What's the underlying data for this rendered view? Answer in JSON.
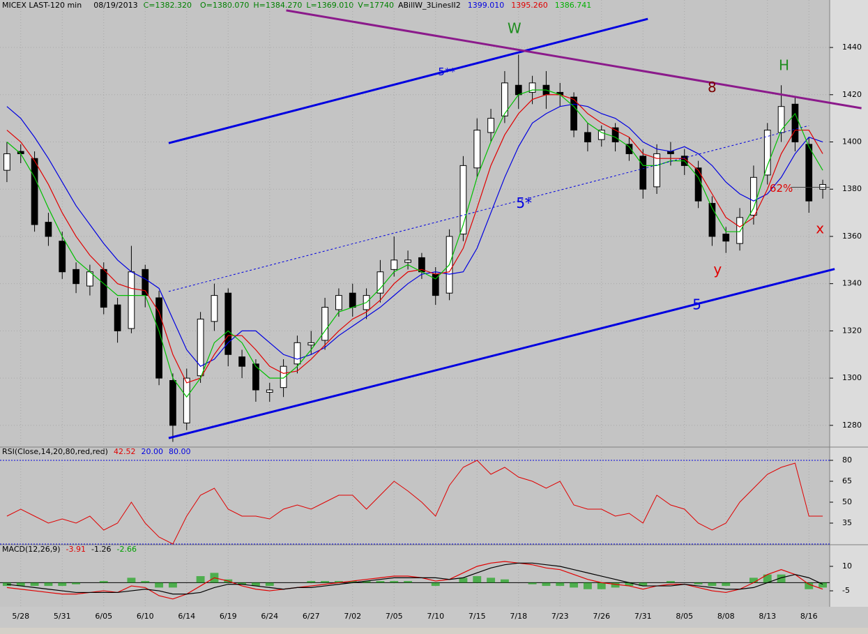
{
  "header": {
    "symbol": "MICEX LAST-120 min",
    "date": "08/19/2013",
    "close": "C=1382.320",
    "open": "O=1380.070",
    "high": "H=1384.270",
    "low": "L=1369.010",
    "volume": "V=17740",
    "study": "ABillW_3LinesII2",
    "study_values": [
      {
        "text": "1399.010",
        "color": "#0000e0"
      },
      {
        "text": "1395.260",
        "color": "#e00000"
      },
      {
        "text": "1386.741",
        "color": "#00b000"
      }
    ]
  },
  "chart_data": [
    {
      "type": "candlestick",
      "categories": [
        null,
        "5/28",
        null,
        null,
        "5/31",
        null,
        null,
        "6/05",
        null,
        null,
        "6/10",
        null,
        null,
        "6/14",
        null,
        null,
        "6/19",
        null,
        null,
        "6/24",
        null,
        null,
        "6/27",
        null,
        null,
        "7/02",
        null,
        null,
        "7/05",
        null,
        null,
        "7/10",
        null,
        null,
        "7/15",
        null,
        null,
        "7/18",
        null,
        null,
        "7/23",
        null,
        null,
        "7/26",
        null,
        null,
        "7/31",
        null,
        null,
        "8/05",
        null,
        null,
        "8/08",
        null,
        null,
        "8/13",
        null,
        null,
        "8/16",
        null
      ],
      "open": [
        1388,
        1396,
        1393,
        1366,
        1358,
        1346,
        1339,
        1346,
        1331,
        1321,
        1346,
        1334,
        1299,
        1281,
        1301,
        1324,
        1336,
        1309,
        1306,
        1294,
        1296,
        1306,
        1314,
        1316,
        1329,
        1336,
        1329,
        1336,
        1346,
        1349,
        1351,
        1344,
        1336,
        1361,
        1389,
        1404,
        1411,
        1424,
        1421,
        1424,
        1421,
        1419,
        1404,
        1401,
        1406,
        1399,
        1394,
        1381,
        1396,
        1394,
        1389,
        1374,
        1361,
        1357,
        1369,
        1386,
        1404,
        1416,
        1399,
        1380
      ],
      "high": [
        1400,
        1399,
        1396,
        1370,
        1362,
        1349,
        1348,
        1349,
        1334,
        1356,
        1348,
        1337,
        1302,
        1304,
        1328,
        1340,
        1338,
        1312,
        1308,
        1298,
        1308,
        1318,
        1320,
        1334,
        1338,
        1340,
        1338,
        1350,
        1360,
        1354,
        1353,
        1347,
        1363,
        1394,
        1410,
        1414,
        1430,
        1437,
        1428,
        1430,
        1425,
        1421,
        1408,
        1407,
        1408,
        1402,
        1397,
        1399,
        1400,
        1397,
        1392,
        1377,
        1364,
        1372,
        1390,
        1408,
        1424,
        1419,
        1402,
        1384
      ],
      "low": [
        1383,
        1391,
        1362,
        1356,
        1342,
        1336,
        1335,
        1327,
        1315,
        1319,
        1330,
        1297,
        1273,
        1278,
        1298,
        1320,
        1305,
        1300,
        1290,
        1290,
        1292,
        1302,
        1310,
        1312,
        1326,
        1326,
        1325,
        1332,
        1343,
        1346,
        1342,
        1331,
        1333,
        1358,
        1385,
        1400,
        1408,
        1414,
        1416,
        1414,
        1415,
        1402,
        1396,
        1398,
        1396,
        1392,
        1376,
        1378,
        1390,
        1386,
        1372,
        1356,
        1353,
        1354,
        1365,
        1382,
        1400,
        1396,
        1370,
        1376
      ],
      "close": [
        1395,
        1395,
        1365,
        1360,
        1345,
        1340,
        1345,
        1330,
        1320,
        1345,
        1335,
        1300,
        1280,
        1300,
        1325,
        1335,
        1310,
        1305,
        1295,
        1295,
        1305,
        1315,
        1315,
        1330,
        1335,
        1330,
        1335,
        1345,
        1350,
        1350,
        1345,
        1335,
        1360,
        1390,
        1405,
        1410,
        1425,
        1420,
        1425,
        1420,
        1420,
        1405,
        1400,
        1405,
        1400,
        1395,
        1380,
        1395,
        1395,
        1390,
        1375,
        1360,
        1358,
        1368,
        1385,
        1405,
        1415,
        1400,
        1375,
        1382
      ],
      "series": [
        {
          "color": "#0000e0",
          "values": [
            1415,
            1410,
            1402,
            1393,
            1383,
            1373,
            1365,
            1357,
            1350,
            1345,
            1342,
            1338,
            1325,
            1312,
            1305,
            1308,
            1315,
            1320,
            1320,
            1315,
            1310,
            1308,
            1310,
            1313,
            1318,
            1322,
            1326,
            1330,
            1335,
            1340,
            1344,
            1345,
            1344,
            1345,
            1355,
            1370,
            1385,
            1398,
            1408,
            1412,
            1415,
            1416,
            1415,
            1412,
            1410,
            1406,
            1400,
            1397,
            1396,
            1398,
            1395,
            1390,
            1383,
            1378,
            1375,
            1378,
            1385,
            1395,
            1402,
            1400
          ]
        },
        {
          "color": "#e00000",
          "values": [
            1405,
            1400,
            1392,
            1382,
            1370,
            1360,
            1352,
            1346,
            1340,
            1338,
            1337,
            1328,
            1310,
            1298,
            1300,
            1310,
            1318,
            1318,
            1312,
            1305,
            1302,
            1303,
            1308,
            1314,
            1320,
            1325,
            1328,
            1333,
            1340,
            1345,
            1346,
            1344,
            1345,
            1355,
            1372,
            1390,
            1403,
            1412,
            1418,
            1420,
            1420,
            1418,
            1412,
            1408,
            1405,
            1402,
            1395,
            1393,
            1393,
            1393,
            1388,
            1378,
            1368,
            1364,
            1368,
            1380,
            1395,
            1405,
            1405,
            1395
          ]
        },
        {
          "color": "#00c000",
          "values": [
            1400,
            1395,
            1385,
            1372,
            1360,
            1350,
            1345,
            1340,
            1335,
            1335,
            1335,
            1320,
            1300,
            1292,
            1300,
            1315,
            1320,
            1315,
            1305,
            1300,
            1300,
            1305,
            1312,
            1320,
            1328,
            1330,
            1332,
            1338,
            1345,
            1348,
            1345,
            1342,
            1348,
            1365,
            1385,
            1400,
            1412,
            1420,
            1422,
            1422,
            1420,
            1415,
            1408,
            1404,
            1402,
            1398,
            1390,
            1390,
            1392,
            1392,
            1385,
            1372,
            1362,
            1362,
            1372,
            1390,
            1405,
            1412,
            1398,
            1388
          ]
        }
      ],
      "ylim": [
        1270.8,
        1460.1
      ],
      "yticks": [
        1280,
        1300,
        1320,
        1340,
        1360,
        1380,
        1400,
        1420,
        1440
      ],
      "grid": true,
      "trendlines": [
        {
          "color": "#0000e0",
          "style": "solid",
          "x": [
            11.7,
            59.86
          ],
          "y": [
            1274.6,
            1346.2
          ]
        },
        {
          "color": "#0000e0",
          "style": "solid",
          "x": [
            11.7,
            46.35
          ],
          "y": [
            1399.5,
            1452.1
          ]
        },
        {
          "color": "#0000e0",
          "style": "dotted",
          "x": [
            11.7,
            58.0
          ],
          "y": [
            1336.7,
            1406.9
          ]
        },
        {
          "color": "#8b1a8b",
          "style": "solid",
          "x": [
            20.2,
            61.8
          ],
          "y": [
            1455.7,
            1414.3
          ]
        },
        {
          "color": "#404040",
          "style": "thin",
          "x": [
            56.7,
            59.5
          ],
          "y": [
            1380.8,
            1380.8
          ]
        }
      ],
      "annotations": [
        {
          "text": "W",
          "x": 36.7,
          "y": 1447.7,
          "color": "#1e8c1e"
        },
        {
          "text": "5**",
          "x": 31.8,
          "y": 1429.6,
          "color": "#0000e0"
        },
        {
          "text": "5*",
          "x": 37.4,
          "y": 1373.7,
          "color": "#0000e0"
        },
        {
          "text": "5",
          "x": 49.9,
          "y": 1330.8,
          "color": "#0000e0"
        },
        {
          "text": "8",
          "x": 51.0,
          "y": 1422.8,
          "color": "#7a0000"
        },
        {
          "text": "H",
          "x": 56.2,
          "y": 1432.0,
          "color": "#1e8c1e"
        },
        {
          "text": "y",
          "x": 51.4,
          "y": 1345.6,
          "color": "#e00000"
        },
        {
          "text": "x",
          "x": 58.8,
          "y": 1363.0,
          "color": "#e00000"
        },
        {
          "text": "62%",
          "x": 56.0,
          "y": 1380.2,
          "color": "#e00000"
        }
      ]
    },
    {
      "type": "line",
      "title": "RSI(Close,14,20,80,red,red)",
      "legend_values": [
        {
          "text": "42.52",
          "color": "#e00000"
        },
        {
          "text": "20.00",
          "color": "#0000e0"
        },
        {
          "text": "80.00",
          "color": "#0000e0"
        }
      ],
      "series": [
        {
          "color": "#e00000",
          "values": [
            40,
            45,
            40,
            35,
            38,
            35,
            40,
            30,
            35,
            50,
            35,
            25,
            20,
            40,
            55,
            60,
            45,
            40,
            40,
            38,
            45,
            48,
            45,
            50,
            55,
            55,
            45,
            55,
            65,
            58,
            50,
            40,
            62,
            75,
            80,
            70,
            75,
            68,
            65,
            60,
            65,
            48,
            45,
            45,
            40,
            42,
            35,
            55,
            48,
            45,
            35,
            30,
            35,
            50,
            60,
            70,
            75,
            78,
            40,
            40
          ]
        }
      ],
      "reference_lines": [
        20,
        80
      ],
      "ylim": [
        19.5,
        82.5
      ],
      "yticks": [
        35,
        50,
        65,
        80
      ]
    },
    {
      "type": "macd",
      "title": "MACD(12,26,9)",
      "legend_values": [
        {
          "text": "-3.91",
          "color": "#e00000"
        },
        {
          "text": "-1.26",
          "color": "#000000"
        },
        {
          "text": "-2.66",
          "color": "#00a000"
        }
      ],
      "series": [
        {
          "color": "#e00000",
          "values": [
            -3,
            -4,
            -5,
            -6,
            -7,
            -7,
            -6,
            -5,
            -6,
            -2,
            -3,
            -8,
            -10,
            -7,
            -2,
            3,
            1,
            -2,
            -4,
            -5,
            -4,
            -3,
            -2,
            -1,
            0,
            1,
            2,
            3,
            4,
            4,
            3,
            1,
            2,
            6,
            10,
            12,
            13,
            12,
            11,
            9,
            8,
            5,
            2,
            0,
            -1,
            -2,
            -4,
            -2,
            -1,
            -1,
            -3,
            -5,
            -6,
            -4,
            0,
            5,
            8,
            5,
            -1,
            -4
          ]
        },
        {
          "color": "#000000",
          "values": [
            -1,
            -2,
            -3,
            -4,
            -5,
            -6,
            -6,
            -6,
            -6,
            -5,
            -4,
            -5,
            -7,
            -7,
            -6,
            -3,
            -1,
            -1,
            -2,
            -3,
            -4,
            -3,
            -3,
            -2,
            -1,
            0,
            1,
            2,
            3,
            3,
            3,
            3,
            2,
            3,
            6,
            9,
            11,
            12,
            12,
            11,
            10,
            8,
            6,
            4,
            2,
            0,
            -2,
            -2,
            -2,
            -1,
            -2,
            -3,
            -4,
            -4,
            -3,
            0,
            3,
            5,
            3,
            -1
          ]
        },
        {
          "color": "#00a000",
          "type": "histogram",
          "values": [
            -2,
            -2,
            -2,
            -2,
            -2,
            -1,
            0,
            1,
            0,
            3,
            1,
            -3,
            -3,
            0,
            4,
            6,
            2,
            -1,
            -2,
            -2,
            0,
            0,
            1,
            1,
            1,
            1,
            1,
            1,
            1,
            1,
            0,
            -2,
            0,
            3,
            4,
            3,
            2,
            0,
            -1,
            -2,
            -2,
            -3,
            -4,
            -4,
            -3,
            -2,
            -2,
            0,
            1,
            0,
            -1,
            -2,
            -2,
            0,
            3,
            5,
            5,
            0,
            -4,
            -3
          ]
        }
      ],
      "ylim": [
        -14.8,
        22.4
      ],
      "yticks": [
        -5,
        10
      ]
    }
  ]
}
